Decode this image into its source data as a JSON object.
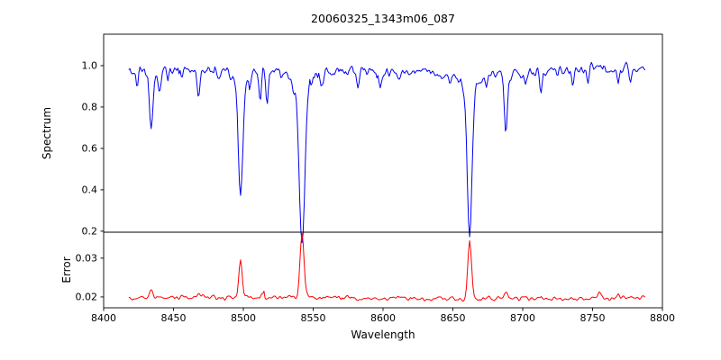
{
  "figure": {
    "background": "#ffffff",
    "axis_color": "#000000"
  },
  "chart_data": [
    {
      "type": "line",
      "panel": "top",
      "title": "20060325_1343m06_087",
      "ylabel": "Spectrum",
      "series": [
        {
          "name": "spectrum",
          "color": "#0000ee"
        }
      ],
      "xlim": [
        8400,
        8800
      ],
      "ylim": [
        0.195,
        1.152
      ],
      "yticks": [
        {
          "value": 1.0,
          "label": "1.0"
        },
        {
          "value": 0.8,
          "label": "0.8"
        },
        {
          "value": 0.6,
          "label": "0.6"
        },
        {
          "value": 0.4,
          "label": "0.4"
        },
        {
          "value": 0.2,
          "label": "0.2"
        }
      ],
      "data_x_range": [
        8418,
        8788
      ],
      "continuum_level": 0.975,
      "noise_amplitude": 0.05,
      "absorption_lines": [
        {
          "center": 8424,
          "min_flux": 0.9,
          "sigma": 0.9
        },
        {
          "center": 8434,
          "min_flux": 0.71,
          "sigma": 1.1
        },
        {
          "center": 8440,
          "min_flux": 0.87,
          "sigma": 0.9
        },
        {
          "center": 8446,
          "min_flux": 0.91,
          "sigma": 0.8
        },
        {
          "center": 8456,
          "min_flux": 0.92,
          "sigma": 0.8
        },
        {
          "center": 8468,
          "min_flux": 0.84,
          "sigma": 1.0
        },
        {
          "center": 8482,
          "min_flux": 0.93,
          "sigma": 0.8
        },
        {
          "center": 8498,
          "min_flux": 0.42,
          "sigma": 1.5
        },
        {
          "center": 8505,
          "min_flux": 0.93,
          "sigma": 0.8
        },
        {
          "center": 8512,
          "min_flux": 0.81,
          "sigma": 0.9
        },
        {
          "center": 8517,
          "min_flux": 0.8,
          "sigma": 0.9
        },
        {
          "center": 8527,
          "min_flux": 0.94,
          "sigma": 0.8
        },
        {
          "center": 8536,
          "min_flux": 0.92,
          "sigma": 0.8
        },
        {
          "center": 8542,
          "min_flux": 0.23,
          "sigma": 1.9
        },
        {
          "center": 8556,
          "min_flux": 0.93,
          "sigma": 0.8
        },
        {
          "center": 8582,
          "min_flux": 0.9,
          "sigma": 0.9
        },
        {
          "center": 8598,
          "min_flux": 0.92,
          "sigma": 0.8
        },
        {
          "center": 8611,
          "min_flux": 0.94,
          "sigma": 0.8
        },
        {
          "center": 8648,
          "min_flux": 0.93,
          "sigma": 0.8
        },
        {
          "center": 8662,
          "min_flux": 0.285,
          "sigma": 1.7
        },
        {
          "center": 8674,
          "min_flux": 0.92,
          "sigma": 0.8
        },
        {
          "center": 8688,
          "min_flux": 0.71,
          "sigma": 1.1
        },
        {
          "center": 8702,
          "min_flux": 0.93,
          "sigma": 0.8
        },
        {
          "center": 8713,
          "min_flux": 0.88,
          "sigma": 0.9
        },
        {
          "center": 8736,
          "min_flux": 0.89,
          "sigma": 0.9
        },
        {
          "center": 8747,
          "min_flux": 0.92,
          "sigma": 0.8
        },
        {
          "center": 8768,
          "min_flux": 0.91,
          "sigma": 0.9
        },
        {
          "center": 8777,
          "min_flux": 0.9,
          "sigma": 0.9
        }
      ]
    },
    {
      "type": "line",
      "panel": "bottom",
      "ylabel": "Error",
      "xlabel": "Wavelength",
      "series": [
        {
          "name": "error",
          "color": "#ff0000"
        }
      ],
      "xlim": [
        8400,
        8800
      ],
      "ylim": [
        0.0172,
        0.0367
      ],
      "yticks": [
        {
          "value": 0.03,
          "label": "0.03"
        },
        {
          "value": 0.02,
          "label": "0.02"
        }
      ],
      "xticks": [
        {
          "value": 8400,
          "label": "8400"
        },
        {
          "value": 8450,
          "label": "8450"
        },
        {
          "value": 8500,
          "label": "8500"
        },
        {
          "value": 8550,
          "label": "8550"
        },
        {
          "value": 8600,
          "label": "8600"
        },
        {
          "value": 8650,
          "label": "8650"
        },
        {
          "value": 8700,
          "label": "8700"
        },
        {
          "value": 8750,
          "label": "8750"
        },
        {
          "value": 8800,
          "label": "8800"
        }
      ],
      "data_x_range": [
        8418,
        8788
      ],
      "baseline_level": 0.0197,
      "noise_amplitude": 0.0011,
      "error_peaks": [
        {
          "center": 8434,
          "max": 0.0215,
          "sigma": 1.1
        },
        {
          "center": 8468,
          "max": 0.0205,
          "sigma": 1.0
        },
        {
          "center": 8498,
          "max": 0.029,
          "sigma": 1.2
        },
        {
          "center": 8514,
          "max": 0.0208,
          "sigma": 1.0
        },
        {
          "center": 8542,
          "max": 0.0363,
          "sigma": 1.4
        },
        {
          "center": 8662,
          "max": 0.0355,
          "sigma": 1.3
        },
        {
          "center": 8688,
          "max": 0.0215,
          "sigma": 1.1
        },
        {
          "center": 8713,
          "max": 0.0205,
          "sigma": 1.0
        },
        {
          "center": 8755,
          "max": 0.0215,
          "sigma": 1.0
        },
        {
          "center": 8768,
          "max": 0.0208,
          "sigma": 1.0
        }
      ]
    }
  ]
}
